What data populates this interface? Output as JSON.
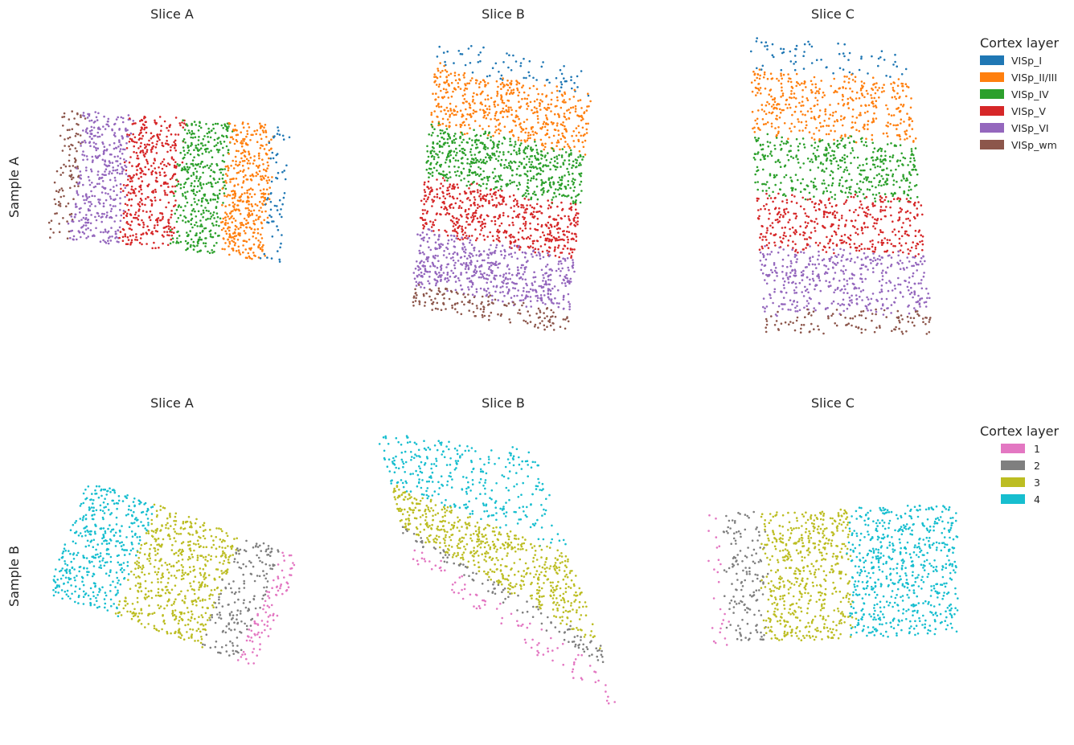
{
  "figure": {
    "rows": [
      {
        "label": "Sample A",
        "legend": {
          "title": "Cortex layer",
          "entries": [
            {
              "label": "VISp_I",
              "color": "#1f77b4"
            },
            {
              "label": "VISp_II/III",
              "color": "#ff7f0e"
            },
            {
              "label": "VISp_IV",
              "color": "#2ca02c"
            },
            {
              "label": "VISp_V",
              "color": "#d62728"
            },
            {
              "label": "VISp_VI",
              "color": "#9467bd"
            },
            {
              "label": "VISp_wm",
              "color": "#8c564b"
            }
          ]
        }
      },
      {
        "label": "Sample B",
        "legend": {
          "title": "Cortex layer",
          "entries": [
            {
              "label": "1",
              "color": "#e377c2"
            },
            {
              "label": "2",
              "color": "#7f7f7f"
            },
            {
              "label": "3",
              "color": "#bcbd22"
            },
            {
              "label": "4",
              "color": "#17becf"
            }
          ]
        }
      }
    ]
  },
  "chart_data": [
    {
      "type": "scatter",
      "title": "Slice A",
      "row": "Sample A",
      "axes": "off",
      "grid": false,
      "series": [
        {
          "name": "VISp_wm",
          "color": "#8c564b",
          "n": 100
        },
        {
          "name": "VISp_VI",
          "color": "#9467bd",
          "n": 370
        },
        {
          "name": "VISp_V",
          "color": "#d62728",
          "n": 420
        },
        {
          "name": "VISp_IV",
          "color": "#2ca02c",
          "n": 400
        },
        {
          "name": "VISp_II/III",
          "color": "#ff7f0e",
          "n": 430
        },
        {
          "name": "VISp_I",
          "color": "#1f77b4",
          "n": 60
        }
      ]
    },
    {
      "type": "scatter",
      "title": "Slice B",
      "row": "Sample A",
      "axes": "off",
      "grid": false,
      "series": [
        {
          "name": "VISp_I",
          "color": "#1f77b4",
          "n": 70
        },
        {
          "name": "VISp_II/III",
          "color": "#ff7f0e",
          "n": 520
        },
        {
          "name": "VISp_IV",
          "color": "#2ca02c",
          "n": 600
        },
        {
          "name": "VISp_V",
          "color": "#d62728",
          "n": 560
        },
        {
          "name": "VISp_VI",
          "color": "#9467bd",
          "n": 560
        },
        {
          "name": "VISp_wm",
          "color": "#8c564b",
          "n": 160
        }
      ]
    },
    {
      "type": "scatter",
      "title": "Slice C",
      "row": "Sample A",
      "axes": "off",
      "grid": false,
      "series": [
        {
          "name": "VISp_I",
          "color": "#1f77b4",
          "n": 70
        },
        {
          "name": "VISp_II/III",
          "color": "#ff7f0e",
          "n": 420
        },
        {
          "name": "VISp_IV",
          "color": "#2ca02c",
          "n": 440
        },
        {
          "name": "VISp_V",
          "color": "#d62728",
          "n": 420
        },
        {
          "name": "VISp_VI",
          "color": "#9467bd",
          "n": 440
        },
        {
          "name": "VISp_wm",
          "color": "#8c564b",
          "n": 110
        }
      ]
    },
    {
      "type": "scatter",
      "title": "Slice A",
      "row": "Sample B",
      "axes": "off",
      "grid": false,
      "series": [
        {
          "name": "4",
          "color": "#17becf",
          "n": 420
        },
        {
          "name": "3",
          "color": "#bcbd22",
          "n": 560
        },
        {
          "name": "2",
          "color": "#7f7f7f",
          "n": 170
        },
        {
          "name": "1",
          "color": "#e377c2",
          "n": 90
        }
      ]
    },
    {
      "type": "scatter",
      "title": "Slice B",
      "row": "Sample B",
      "axes": "off",
      "grid": false,
      "series": [
        {
          "name": "4",
          "color": "#17becf",
          "n": 330
        },
        {
          "name": "3",
          "color": "#bcbd22",
          "n": 620
        },
        {
          "name": "2",
          "color": "#7f7f7f",
          "n": 110
        },
        {
          "name": "1",
          "color": "#e377c2",
          "n": 90
        }
      ]
    },
    {
      "type": "scatter",
      "title": "Slice C",
      "row": "Sample B",
      "axes": "off",
      "grid": false,
      "series": [
        {
          "name": "1",
          "color": "#e377c2",
          "n": 25
        },
        {
          "name": "2",
          "color": "#7f7f7f",
          "n": 150
        },
        {
          "name": "3",
          "color": "#bcbd22",
          "n": 560
        },
        {
          "name": "4",
          "color": "#17becf",
          "n": 640
        }
      ]
    }
  ]
}
